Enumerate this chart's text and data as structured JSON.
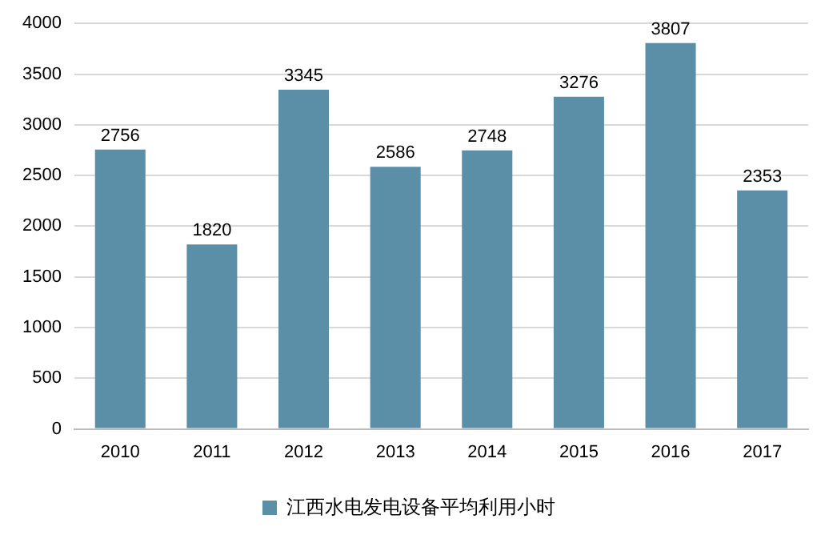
{
  "chart_data": {
    "type": "bar",
    "categories": [
      "2010",
      "2011",
      "2012",
      "2013",
      "2014",
      "2015",
      "2016",
      "2017"
    ],
    "series": [
      {
        "name": "江西水电发电设备平均利用小时",
        "color": "#5b8fa8",
        "values": [
          2756,
          1820,
          3345,
          2586,
          2748,
          3276,
          3807,
          2353
        ]
      }
    ],
    "ylim": [
      0,
      4000
    ],
    "yticks": [
      0,
      500,
      1000,
      1500,
      2000,
      2500,
      3000,
      3500,
      4000
    ],
    "grid": "y",
    "legend": "bottom",
    "data_labels": true
  }
}
